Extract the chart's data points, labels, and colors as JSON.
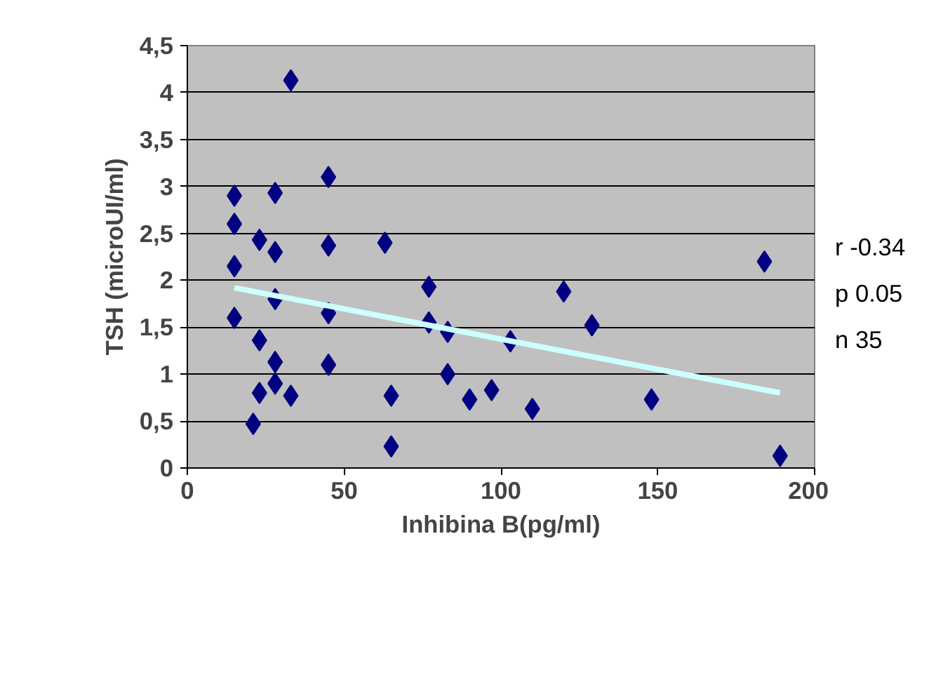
{
  "chart_data": {
    "type": "scatter",
    "xlabel": "Inhibina B(pg/ml)",
    "ylabel": "TSH (microUI/ml)",
    "series": [
      {
        "color": "#000080",
        "marker": "diamond",
        "x": [
          15,
          15,
          15,
          15,
          21,
          23,
          23,
          23,
          28,
          28,
          28,
          28,
          28,
          33,
          33,
          45,
          45,
          45,
          45,
          63,
          65,
          65,
          77,
          77,
          83,
          83,
          90,
          97,
          103,
          110,
          120,
          129,
          148,
          184,
          189
        ],
        "values": [
          2.9,
          2.6,
          2.15,
          1.6,
          0.47,
          2.43,
          1.36,
          0.8,
          2.93,
          2.3,
          1.8,
          1.13,
          0.9,
          4.13,
          0.77,
          3.1,
          2.37,
          1.65,
          1.1,
          2.4,
          0.77,
          0.23,
          1.93,
          1.55,
          1.45,
          1.0,
          0.73,
          0.83,
          1.35,
          0.63,
          1.88,
          1.52,
          0.73,
          2.2,
          0.13
        ]
      },
      {
        "type": "line",
        "color": "#ccffff",
        "marker": "none",
        "x": [
          15,
          189
        ],
        "values": [
          1.92,
          0.8
        ]
      }
    ],
    "annotations": [
      "r -0.34",
      "p 0.05",
      "n 35"
    ],
    "xlim": [
      0,
      200
    ],
    "xticks": [
      0,
      50,
      100,
      150,
      200
    ],
    "ylim": [
      0,
      4.5
    ],
    "yticks": [
      0,
      {
        "value": 0.5,
        "label": "0,5"
      },
      1,
      {
        "value": 1.5,
        "label": "1,5"
      },
      2,
      {
        "value": 2.5,
        "label": "2,5"
      },
      3,
      {
        "value": 3.5,
        "label": "3,5"
      },
      4,
      {
        "value": 4.5,
        "label": "4,5"
      }
    ],
    "grid": "y",
    "legend": false
  }
}
